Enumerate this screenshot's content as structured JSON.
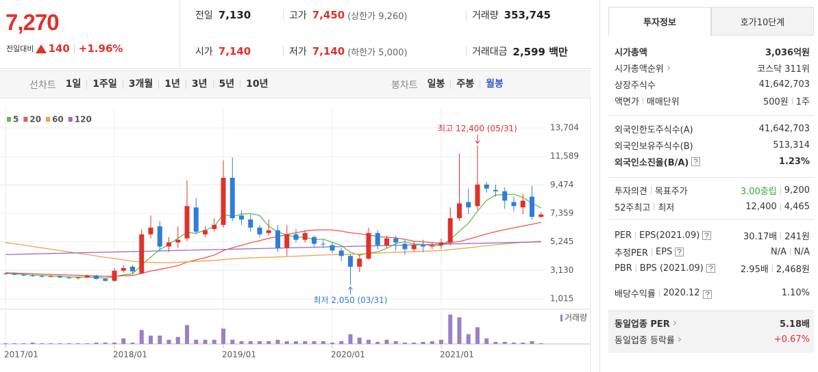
{
  "header": {
    "price": "7,270",
    "change_label": "전일대비",
    "change": "140",
    "change_rate": "+1.96%",
    "quotes": [
      {
        "label": "전일",
        "value": "7,130"
      },
      {
        "label": "고가",
        "value": "7,450",
        "note": "(상한가 9,260)",
        "color": "#e0312b"
      },
      {
        "label": "거래량",
        "value": "353,745"
      },
      {
        "label": "시가",
        "value": "7,140",
        "color": "#e0312b"
      },
      {
        "label": "저가",
        "value": "7,140",
        "note": "(하한가 5,000)",
        "color": "#e0312b"
      },
      {
        "label": "거래대금",
        "value": "2,599 백만"
      }
    ]
  },
  "tabs": {
    "line": {
      "label": "선차트",
      "items": [
        "1일",
        "1주일",
        "3개월",
        "1년",
        "3년",
        "5년",
        "10년"
      ]
    },
    "candle": {
      "label": "봉차트",
      "items": [
        "일봉",
        "주봉",
        "월봉"
      ],
      "selected": 2
    }
  },
  "chart_data": {
    "type": "candlestick",
    "categories": [
      "2017/01",
      null,
      null,
      null,
      null,
      null,
      null,
      null,
      null,
      null,
      null,
      null,
      "2018/01",
      null,
      null,
      null,
      null,
      null,
      null,
      null,
      null,
      null,
      null,
      null,
      "2019/01",
      null,
      null,
      null,
      null,
      null,
      null,
      null,
      null,
      null,
      null,
      null,
      "2020/01",
      null,
      null,
      null,
      null,
      null,
      null,
      null,
      null,
      null,
      null,
      null,
      "2021/01",
      null,
      null,
      null,
      null,
      null,
      null,
      null,
      null,
      null,
      null,
      null
    ],
    "open": [
      2900,
      2880,
      2800,
      2750,
      2700,
      2650,
      2700,
      2600,
      2550,
      2600,
      2750,
      2500,
      2350,
      3100,
      3400,
      2900,
      5800,
      6400,
      4900,
      5200,
      5500,
      7800,
      5800,
      6200,
      6500,
      10000,
      7200,
      6900,
      6300,
      5900,
      6100,
      4800,
      5800,
      5400,
      5600,
      5100,
      5000,
      4600,
      4200,
      3400,
      4000,
      5900,
      5000,
      5500,
      5100,
      4700,
      5000,
      4900,
      5000,
      5200,
      7000,
      8200,
      7900,
      9500,
      9100,
      9000,
      8200,
      7800,
      8600,
      7100
    ],
    "high": [
      2950,
      2950,
      2900,
      2850,
      2800,
      2750,
      2750,
      2700,
      2650,
      2800,
      2800,
      2550,
      3300,
      3500,
      3500,
      6200,
      7200,
      6800,
      5600,
      6400,
      9800,
      8500,
      6400,
      7000,
      11300,
      11500,
      7600,
      7300,
      6500,
      6900,
      6500,
      6500,
      6200,
      6100,
      5700,
      5400,
      5200,
      4800,
      4300,
      4300,
      6300,
      6100,
      5700,
      5700,
      5400,
      5300,
      5400,
      5200,
      5500,
      7800,
      11800,
      9200,
      12400,
      9700,
      9500,
      9300,
      8600,
      8800,
      9400,
      7450
    ],
    "low": [
      2800,
      2750,
      2700,
      2650,
      2600,
      2600,
      2550,
      2500,
      2450,
      2550,
      2450,
      2300,
      2300,
      2950,
      2900,
      2900,
      5500,
      4600,
      4500,
      4800,
      5300,
      5800,
      5600,
      6000,
      6300,
      6800,
      6500,
      6000,
      5600,
      5700,
      4500,
      4200,
      5200,
      5200,
      4900,
      4800,
      4400,
      3800,
      2050,
      3000,
      3900,
      4700,
      4800,
      4600,
      4300,
      4500,
      4500,
      4700,
      4700,
      5000,
      6800,
      7300,
      7600,
      8900,
      8600,
      7700,
      7500,
      7300,
      6900,
      7000
    ],
    "close": [
      2880,
      2800,
      2750,
      2700,
      2650,
      2700,
      2600,
      2550,
      2600,
      2750,
      2500,
      2350,
      3100,
      3300,
      3050,
      5800,
      6300,
      4900,
      5200,
      5400,
      7900,
      6000,
      6100,
      6500,
      10000,
      7000,
      6900,
      6300,
      5800,
      6100,
      4800,
      5800,
      5400,
      5900,
      5100,
      5050,
      4600,
      4200,
      3400,
      4000,
      5900,
      5000,
      5500,
      5200,
      4700,
      5000,
      4900,
      5000,
      5200,
      7000,
      8100,
      7800,
      9500,
      9200,
      9000,
      8300,
      7900,
      8300,
      7100,
      7270
    ],
    "up_color": "#e0312b",
    "down_color": "#2e7ddb",
    "ylim": [
      355,
      14060
    ],
    "yticks": [
      {
        "value": 1015,
        "label": "1,015"
      },
      {
        "value": 3130,
        "label": "3,130"
      },
      {
        "value": 5245,
        "label": "5,245"
      },
      {
        "value": 7359,
        "label": "7,359"
      },
      {
        "value": 9474,
        "label": "9,474"
      },
      {
        "value": 11589,
        "label": "11,589"
      },
      {
        "value": 13704,
        "label": "13,704"
      }
    ],
    "grid": true,
    "moving_averages": [
      {
        "name": "5",
        "color": "#5fbd4a",
        "values": [
          2900,
          2880,
          2830,
          2780,
          2760,
          2720,
          2680,
          2640,
          2620,
          2630,
          2600,
          2550,
          2660,
          2800,
          2860,
          3520,
          4110,
          4670,
          5050,
          5520,
          5940,
          5880,
          6120,
          6380,
          7300,
          7120,
          7300,
          7340,
          7200,
          6420,
          5980,
          5760,
          5580,
          5600,
          5400,
          5450,
          5210,
          4970,
          4470,
          4250,
          4420,
          4500,
          4760,
          5120,
          5260,
          5080,
          5060,
          4960,
          4960,
          5420,
          6040,
          6620,
          7520,
          8320,
          8720,
          8760,
          8780,
          8540,
          8120,
          7770
        ]
      },
      {
        "name": "20",
        "color": "#ea5550",
        "values": [
          2950,
          2930,
          2900,
          2880,
          2850,
          2830,
          2800,
          2780,
          2750,
          2730,
          2700,
          2680,
          2700,
          2720,
          2750,
          2900,
          3080,
          3200,
          3330,
          3480,
          3740,
          3900,
          4070,
          4260,
          4600,
          4800,
          4990,
          5170,
          5330,
          5510,
          5620,
          5790,
          5920,
          6050,
          6120,
          6140,
          6130,
          6040,
          5920,
          5850,
          5750,
          5640,
          5590,
          5540,
          5430,
          5290,
          5250,
          5190,
          5130,
          5170,
          5270,
          5440,
          5640,
          5830,
          6000,
          6150,
          6290,
          6420,
          6550,
          6700
        ]
      },
      {
        "name": "60",
        "color": "#f3a04a",
        "values": [
          5200,
          5100,
          5000,
          4900,
          4800,
          4700,
          4600,
          4500,
          4400,
          4300,
          4200,
          4100,
          4000,
          3900,
          3800,
          3750,
          3720,
          3700,
          3700,
          3720,
          3760,
          3800,
          3830,
          3860,
          3930,
          3980,
          4020,
          4050,
          4080,
          4100,
          4120,
          4150,
          4180,
          4210,
          4240,
          4270,
          4290,
          4310,
          4320,
          4340,
          4380,
          4410,
          4440,
          4470,
          4490,
          4520,
          4540,
          4570,
          4600,
          4660,
          4740,
          4800,
          4880,
          4960,
          5030,
          5090,
          5150,
          5210,
          5250,
          5290
        ]
      },
      {
        "name": "120",
        "color": "#9a6ac6",
        "values": [
          4300,
          4316,
          4332,
          4348,
          4364,
          4380,
          4396,
          4412,
          4428,
          4444,
          4460,
          4476,
          4492,
          4508,
          4524,
          4540,
          4556,
          4572,
          4588,
          4604,
          4620,
          4636,
          4652,
          4668,
          4684,
          4700,
          4716,
          4732,
          4748,
          4764,
          4780,
          4796,
          4812,
          4828,
          4844,
          4860,
          4876,
          4892,
          4908,
          4924,
          4940,
          4956,
          4972,
          4988,
          5004,
          5020,
          5036,
          5052,
          5068,
          5084,
          5100,
          5116,
          5132,
          5148,
          5164,
          5180,
          5196,
          5212,
          5228,
          5244
        ]
      }
    ],
    "annotations": {
      "high": "최고 12,400 (05/31)",
      "low": "최저 2,050 (03/31)"
    },
    "volume": {
      "name": "거래량",
      "color": "#9b7fc9",
      "ylim": [
        0,
        45
      ],
      "values": [
        1,
        1,
        1,
        2,
        1,
        1,
        1,
        1,
        1,
        1,
        2,
        2,
        2,
        8,
        2,
        20,
        12,
        12,
        6,
        10,
        27,
        6,
        6,
        6,
        22,
        6,
        4,
        4,
        4,
        4,
        6,
        4,
        4,
        4,
        4,
        4,
        2,
        4,
        14,
        9,
        6,
        3,
        6,
        4,
        2,
        2,
        3,
        4,
        6,
        42,
        38,
        14,
        24,
        8,
        3,
        3,
        2,
        2,
        4,
        1
      ]
    }
  },
  "sidebar": {
    "tabs": [
      "투자정보",
      "호가10단계"
    ],
    "selected": 0,
    "sections": [
      {
        "rows": [
          {
            "label": [
              "시가총액"
            ],
            "value": [
              "3,036억원"
            ],
            "bold": true
          },
          {
            "label": [
              "시가총액순위"
            ],
            "value": [
              "코스닥 311위"
            ],
            "link": true
          },
          {
            "label": [
              "상장주식수"
            ],
            "value": [
              "41,642,703"
            ]
          },
          {
            "label": [
              "액면가",
              "매매단위"
            ],
            "value": [
              "500원",
              "1주"
            ]
          }
        ]
      },
      {
        "rows": [
          {
            "label": [
              "외국인한도주식수(A)"
            ],
            "value": [
              "41,642,703"
            ]
          },
          {
            "label": [
              "외국인보유주식수(B)"
            ],
            "value": [
              "513,314"
            ]
          },
          {
            "label": [
              "외국인소진율(B/A)"
            ],
            "value": [
              "1.23%"
            ],
            "bold": true,
            "help": true
          }
        ]
      },
      {
        "rows": [
          {
            "label": [
              "투자의견",
              "목표주가"
            ],
            "value": [
              {
                "text": "3.00중립",
                "color": "#38a838"
              },
              "9,200"
            ]
          },
          {
            "label": [
              "52주최고",
              "최저"
            ],
            "value": [
              "12,400",
              "4,465"
            ]
          }
        ]
      },
      {
        "rows": [
          {
            "label": [
              "PER",
              "EPS(2021.09)"
            ],
            "value": [
              "30.17배",
              "241원"
            ],
            "help": true
          },
          {
            "label": [
              "추정PER",
              "EPS"
            ],
            "value": [
              "N/A",
              "N/A"
            ],
            "help": true
          },
          {
            "label": [
              "PBR",
              "BPS (2021.09)"
            ],
            "value": [
              "2.95배",
              "2,468원"
            ],
            "help": true
          },
          {
            "label": [
              "배당수익률",
              "2020.12"
            ],
            "value": [
              "1.10%"
            ],
            "help": true,
            "wrap": true
          }
        ]
      },
      {
        "shaded": true,
        "rows": [
          {
            "label": [
              "동일업종 PER"
            ],
            "value": [
              "5.18배"
            ],
            "bold": true,
            "link": true
          },
          {
            "label": [
              "동일업종 등락률"
            ],
            "value": [
              {
                "text": "+0.67%",
                "color": "#e0312b"
              }
            ],
            "link": true
          }
        ]
      }
    ]
  }
}
